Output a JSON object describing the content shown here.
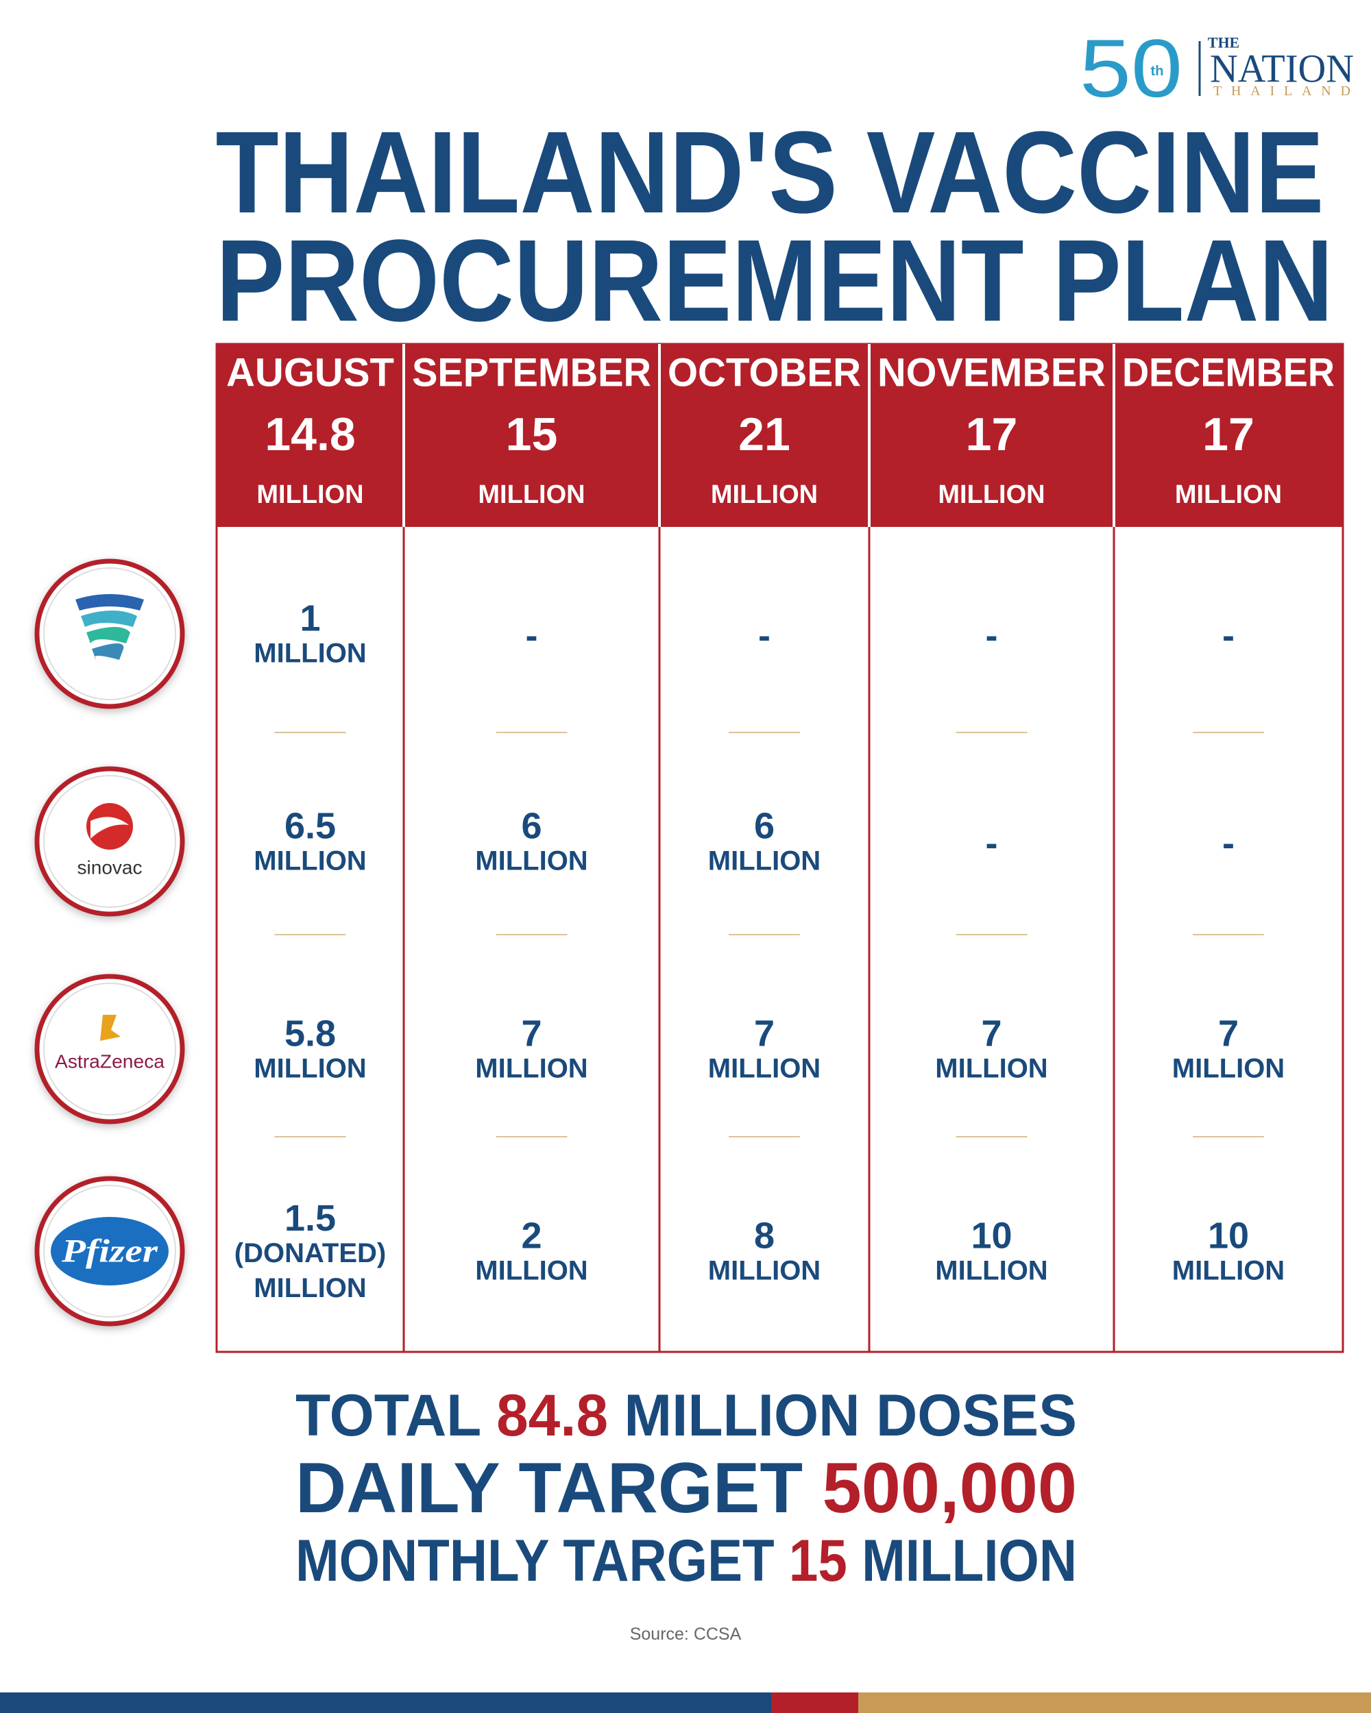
{
  "logo": {
    "anniversary": "50",
    "suffix": "th",
    "the": "THE",
    "name": "NATION",
    "country": "THAILAND"
  },
  "title": [
    "THAILAND'S VACCINE",
    "PROCUREMENT PLAN"
  ],
  "table": {
    "months": [
      {
        "month": "AUGUST",
        "amount": "14.8",
        "unit": "MILLION"
      },
      {
        "month": "SEPTEMBER",
        "amount": "15",
        "unit": "MILLION"
      },
      {
        "month": "OCTOBER",
        "amount": "21",
        "unit": "MILLION"
      },
      {
        "month": "NOVEMBER",
        "amount": "17",
        "unit": "MILLION"
      },
      {
        "month": "DECEMBER",
        "amount": "17",
        "unit": "MILLION"
      }
    ],
    "rows": [
      {
        "cells": [
          [
            "1",
            "MILLION"
          ],
          [
            "-"
          ],
          [
            "-"
          ],
          [
            "-"
          ],
          [
            "-"
          ]
        ]
      },
      {
        "logo": "sinovac",
        "cells": [
          [
            "6.5",
            "MILLION"
          ],
          [
            "6",
            "MILLION"
          ],
          [
            "6",
            "MILLION"
          ],
          [
            "-"
          ],
          [
            "-"
          ]
        ]
      },
      {
        "logo": "AstraZeneca",
        "cells": [
          [
            "5.8",
            "MILLION"
          ],
          [
            "7",
            "MILLION"
          ],
          [
            "7",
            "MILLION"
          ],
          [
            "7",
            "MILLION"
          ],
          [
            "7",
            "MILLION"
          ]
        ]
      },
      {
        "logo": "Pfizer",
        "cells": [
          [
            "1.5",
            "(DONATED)",
            "MILLION"
          ],
          [
            "2",
            "MILLION"
          ],
          [
            "8",
            "MILLION"
          ],
          [
            "10",
            "MILLION"
          ],
          [
            "10",
            "MILLION"
          ]
        ]
      }
    ]
  },
  "summary": [
    {
      "label": "TOTAL",
      "value": "84.8",
      "unit": "MILLION DOSES"
    },
    {
      "label": "DAILY TARGET",
      "value": "500,000"
    },
    {
      "label": "MONTHLY TARGET",
      "value": "15",
      "unit": "MILLION"
    }
  ],
  "source": "Source: CCSA"
}
